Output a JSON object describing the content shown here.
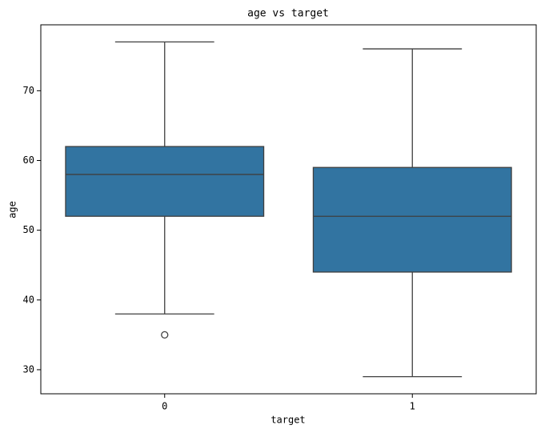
{
  "chart_data": {
    "type": "box",
    "title": "age vs target",
    "xlabel": "target",
    "ylabel": "age",
    "categories": [
      "0",
      "1"
    ],
    "boxes": [
      {
        "whislo": 38,
        "q1": 52,
        "med": 58,
        "q3": 62,
        "whishi": 77,
        "fliers": [
          35
        ]
      },
      {
        "whislo": 29,
        "q1": 44,
        "med": 52,
        "q3": 59,
        "whishi": 76,
        "fliers": []
      }
    ],
    "color": "#3274a1",
    "line_color": "#3f3f3f",
    "ylim": [
      26.55,
      79.45
    ],
    "yticks": [
      30,
      40,
      50,
      60,
      70
    ]
  }
}
